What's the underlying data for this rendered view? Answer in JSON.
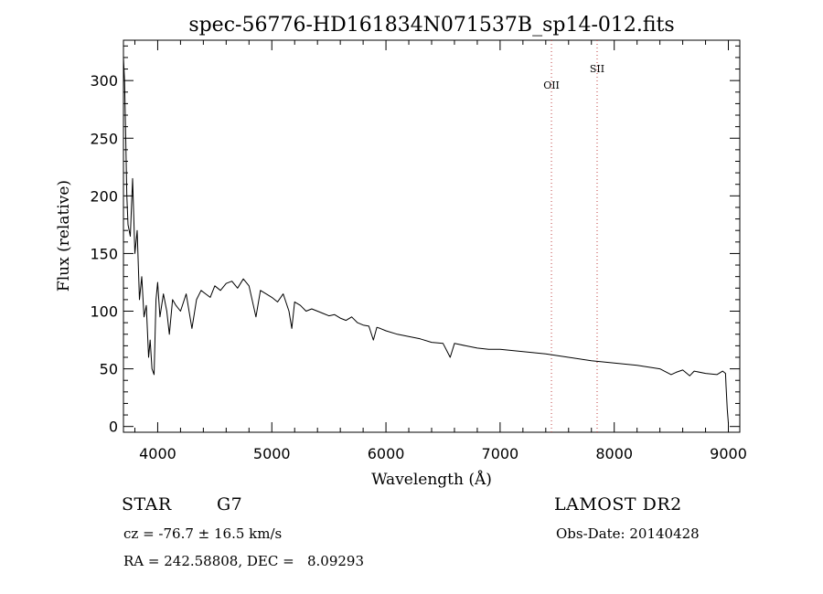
{
  "chart_data": {
    "type": "line",
    "title": "spec-56776-HD161834N071537B_sp14-012.fits",
    "xlabel": "Wavelength (Å)",
    "ylabel": "Flux (relative)",
    "xlim": [
      3700,
      9100
    ],
    "ylim": [
      -5,
      335
    ],
    "xticks": [
      4000,
      5000,
      6000,
      7000,
      8000,
      9000
    ],
    "yticks": [
      0,
      50,
      100,
      150,
      200,
      250,
      300
    ],
    "grid": false,
    "line_color": "#000000",
    "marker_line_color": "#c04040",
    "lines": [
      {
        "label": "OII",
        "x": 7450
      },
      {
        "label": "SII",
        "x": 7850
      }
    ],
    "series": [
      {
        "x": [
          3700,
          3710,
          3720,
          3730,
          3740,
          3760,
          3780,
          3800,
          3820,
          3840,
          3860,
          3880,
          3900,
          3920,
          3934,
          3950,
          3968,
          3985,
          4000,
          4020,
          4050,
          4080,
          4102,
          4130,
          4160,
          4200,
          4250,
          4300,
          4340,
          4380,
          4420,
          4460,
          4500,
          4550,
          4600,
          4650,
          4700,
          4750,
          4800,
          4861,
          4900,
          4950,
          5000,
          5050,
          5100,
          5150,
          5175,
          5200,
          5250,
          5300,
          5350,
          5400,
          5450,
          5500,
          5550,
          5600,
          5650,
          5700,
          5750,
          5800,
          5850,
          5890,
          5920,
          5950,
          6000,
          6100,
          6200,
          6300,
          6400,
          6500,
          6563,
          6600,
          6700,
          6800,
          6900,
          7000,
          7200,
          7400,
          7600,
          7800,
          8000,
          8200,
          8400,
          8498,
          8542,
          8600,
          8662,
          8700,
          8800,
          8900,
          8950,
          8975,
          8980,
          8990,
          9000
        ],
        "values": [
          320,
          300,
          250,
          200,
          175,
          165,
          215,
          150,
          170,
          110,
          130,
          95,
          105,
          60,
          75,
          50,
          45,
          110,
          125,
          95,
          115,
          100,
          80,
          110,
          105,
          100,
          115,
          85,
          110,
          118,
          115,
          112,
          122,
          118,
          124,
          126,
          120,
          128,
          122,
          95,
          118,
          115,
          112,
          108,
          115,
          100,
          85,
          108,
          105,
          100,
          102,
          100,
          98,
          96,
          97,
          94,
          92,
          95,
          90,
          88,
          87,
          75,
          86,
          85,
          83,
          80,
          78,
          76,
          73,
          72,
          60,
          72,
          70,
          68,
          67,
          67,
          65,
          63,
          60,
          57,
          55,
          53,
          50,
          45,
          47,
          49,
          44,
          48,
          46,
          45,
          48,
          46,
          35,
          15,
          3
        ]
      }
    ]
  },
  "info": {
    "object_class": "STAR",
    "subclass": "G7",
    "survey": "LAMOST DR2",
    "redshift": "cz = -76.7 ± 16.5 km/s",
    "obs_date": "Obs-Date: 20140428",
    "coords": "RA = 242.58808, DEC =   8.09293"
  }
}
